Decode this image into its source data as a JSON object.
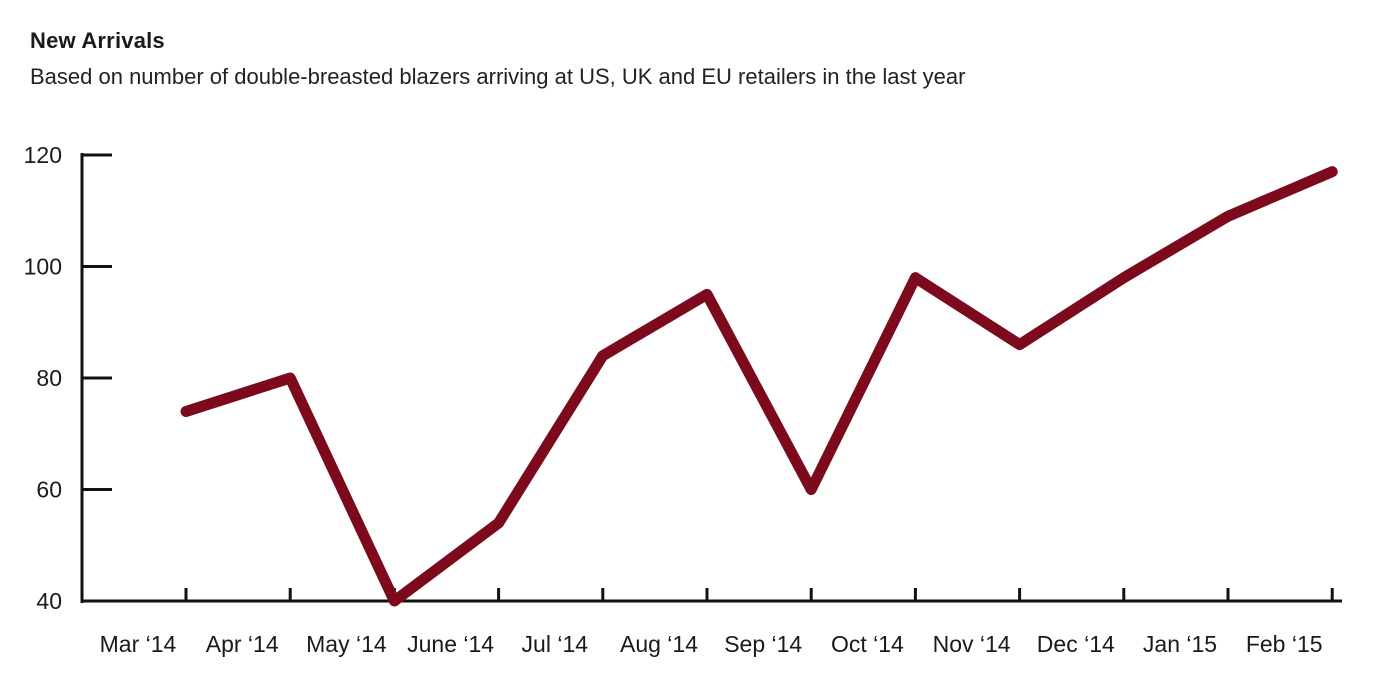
{
  "chart_data": {
    "type": "line",
    "title": "New Arrivals",
    "subtitle": "Based on number of double-breasted blazers arriving at US, UK and EU retailers in the last year",
    "xlabel": "",
    "ylabel": "",
    "categories": [
      "Mar ‘14",
      "Apr ‘14",
      "May ‘14",
      "June ‘14",
      "Jul ‘14",
      "Aug ‘14",
      "Sep ‘14",
      "Oct ‘14",
      "Nov ‘14",
      "Dec ‘14",
      "Jan ‘15",
      "Feb ‘15"
    ],
    "series": [
      {
        "values": [
          74,
          80,
          40,
          54,
          84,
          95,
          60,
          98,
          86,
          98,
          109,
          117
        ],
        "color": "#7d0a1c"
      }
    ],
    "ylim": [
      40,
      120
    ],
    "yticks": [
      40,
      60,
      80,
      100,
      120
    ],
    "grid": false,
    "legend": "none"
  }
}
